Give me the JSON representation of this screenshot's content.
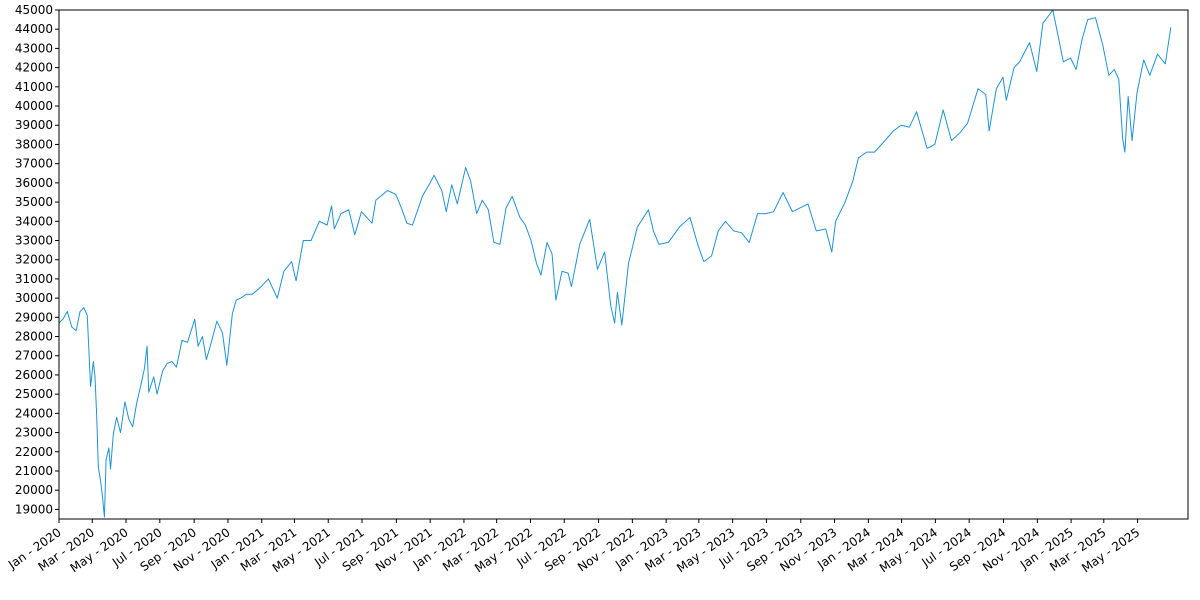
{
  "chart_data": {
    "type": "line",
    "title": "",
    "xlabel": "",
    "ylabel": "",
    "grid": false,
    "x_range": [
      "2020-01-01",
      "2025-07-31"
    ],
    "ylim": [
      18500,
      45000
    ],
    "yticks": [
      19000,
      20000,
      21000,
      22000,
      23000,
      24000,
      25000,
      26000,
      27000,
      28000,
      29000,
      30000,
      31000,
      32000,
      33000,
      34000,
      35000,
      36000,
      37000,
      38000,
      39000,
      40000,
      41000,
      42000,
      43000,
      44000,
      45000
    ],
    "xticks": [
      {
        "date": "2020-01-01",
        "label": "Jan - 2020"
      },
      {
        "date": "2020-03-01",
        "label": "Mar - 2020"
      },
      {
        "date": "2020-05-01",
        "label": "May - 2020"
      },
      {
        "date": "2020-07-01",
        "label": "Jul - 2020"
      },
      {
        "date": "2020-09-01",
        "label": "Sep - 2020"
      },
      {
        "date": "2020-11-01",
        "label": "Nov - 2020"
      },
      {
        "date": "2021-01-01",
        "label": "Jan - 2021"
      },
      {
        "date": "2021-03-01",
        "label": "Mar - 2021"
      },
      {
        "date": "2021-05-01",
        "label": "May - 2021"
      },
      {
        "date": "2021-07-01",
        "label": "Jul - 2021"
      },
      {
        "date": "2021-09-01",
        "label": "Sep - 2021"
      },
      {
        "date": "2021-11-01",
        "label": "Nov - 2021"
      },
      {
        "date": "2022-01-01",
        "label": "Jan - 2022"
      },
      {
        "date": "2022-03-01",
        "label": "Mar - 2022"
      },
      {
        "date": "2022-05-01",
        "label": "May - 2022"
      },
      {
        "date": "2022-07-01",
        "label": "Jul - 2022"
      },
      {
        "date": "2022-09-01",
        "label": "Sep - 2022"
      },
      {
        "date": "2022-11-01",
        "label": "Nov - 2022"
      },
      {
        "date": "2023-01-01",
        "label": "Jan - 2023"
      },
      {
        "date": "2023-03-01",
        "label": "Mar - 2023"
      },
      {
        "date": "2023-05-01",
        "label": "May - 2023"
      },
      {
        "date": "2023-07-01",
        "label": "Jul - 2023"
      },
      {
        "date": "2023-09-01",
        "label": "Sep - 2023"
      },
      {
        "date": "2023-11-01",
        "label": "Nov - 2023"
      },
      {
        "date": "2024-01-01",
        "label": "Jan - 2024"
      },
      {
        "date": "2024-03-01",
        "label": "Mar - 2024"
      },
      {
        "date": "2024-05-01",
        "label": "May - 2024"
      },
      {
        "date": "2024-07-01",
        "label": "Jul - 2024"
      },
      {
        "date": "2024-09-01",
        "label": "Sep - 2024"
      },
      {
        "date": "2024-11-01",
        "label": "Nov - 2024"
      },
      {
        "date": "2025-01-01",
        "label": "Jan - 2025"
      },
      {
        "date": "2025-03-01",
        "label": "Mar - 2025"
      },
      {
        "date": "2025-05-01",
        "label": "May - 2025"
      }
    ],
    "series": [
      {
        "color": "#1f93d6",
        "points": [
          [
            "2020-01-01",
            28700
          ],
          [
            "2020-01-08",
            28900
          ],
          [
            "2020-01-16",
            29300
          ],
          [
            "2020-01-24",
            28500
          ],
          [
            "2020-02-01",
            28300
          ],
          [
            "2020-02-08",
            29300
          ],
          [
            "2020-02-15",
            29500
          ],
          [
            "2020-02-21",
            29100
          ],
          [
            "2020-02-27",
            25400
          ],
          [
            "2020-03-03",
            26700
          ],
          [
            "2020-03-06",
            25900
          ],
          [
            "2020-03-09",
            23900
          ],
          [
            "2020-03-12",
            21200
          ],
          [
            "2020-03-16",
            20500
          ],
          [
            "2020-03-19",
            19800
          ],
          [
            "2020-03-23",
            18600
          ],
          [
            "2020-03-26",
            21600
          ],
          [
            "2020-03-31",
            22200
          ],
          [
            "2020-04-03",
            21100
          ],
          [
            "2020-04-08",
            22900
          ],
          [
            "2020-04-14",
            23800
          ],
          [
            "2020-04-21",
            23000
          ],
          [
            "2020-04-29",
            24600
          ],
          [
            "2020-05-06",
            23700
          ],
          [
            "2020-05-13",
            23300
          ],
          [
            "2020-05-20",
            24500
          ],
          [
            "2020-05-28",
            25500
          ],
          [
            "2020-06-03",
            26300
          ],
          [
            "2020-06-08",
            27500
          ],
          [
            "2020-06-11",
            25100
          ],
          [
            "2020-06-20",
            25900
          ],
          [
            "2020-06-26",
            25000
          ],
          [
            "2020-07-06",
            26200
          ],
          [
            "2020-07-14",
            26600
          ],
          [
            "2020-07-23",
            26700
          ],
          [
            "2020-07-31",
            26400
          ],
          [
            "2020-08-10",
            27800
          ],
          [
            "2020-08-20",
            27700
          ],
          [
            "2020-09-02",
            28900
          ],
          [
            "2020-09-08",
            27500
          ],
          [
            "2020-09-16",
            28000
          ],
          [
            "2020-09-23",
            26800
          ],
          [
            "2020-10-02",
            27700
          ],
          [
            "2020-10-12",
            28800
          ],
          [
            "2020-10-22",
            28200
          ],
          [
            "2020-10-30",
            26500
          ],
          [
            "2020-11-09",
            29200
          ],
          [
            "2020-11-16",
            29900
          ],
          [
            "2020-11-24",
            30000
          ],
          [
            "2020-12-04",
            30200
          ],
          [
            "2020-12-15",
            30200
          ],
          [
            "2020-12-31",
            30600
          ],
          [
            "2021-01-13",
            31000
          ],
          [
            "2021-01-29",
            30000
          ],
          [
            "2021-02-10",
            31400
          ],
          [
            "2021-02-24",
            31900
          ],
          [
            "2021-03-04",
            30900
          ],
          [
            "2021-03-17",
            33000
          ],
          [
            "2021-03-31",
            33000
          ],
          [
            "2021-04-15",
            34000
          ],
          [
            "2021-04-29",
            33800
          ],
          [
            "2021-05-07",
            34800
          ],
          [
            "2021-05-12",
            33600
          ],
          [
            "2021-05-24",
            34400
          ],
          [
            "2021-06-07",
            34600
          ],
          [
            "2021-06-18",
            33300
          ],
          [
            "2021-06-30",
            34500
          ],
          [
            "2021-07-19",
            33900
          ],
          [
            "2021-07-26",
            35100
          ],
          [
            "2021-08-16",
            35600
          ],
          [
            "2021-08-31",
            35400
          ],
          [
            "2021-09-10",
            34700
          ],
          [
            "2021-09-20",
            33900
          ],
          [
            "2021-09-30",
            33800
          ],
          [
            "2021-10-18",
            35300
          ],
          [
            "2021-11-01",
            36000
          ],
          [
            "2021-11-08",
            36400
          ],
          [
            "2021-11-22",
            35600
          ],
          [
            "2021-11-30",
            34500
          ],
          [
            "2021-12-10",
            35900
          ],
          [
            "2021-12-20",
            34900
          ],
          [
            "2022-01-04",
            36800
          ],
          [
            "2022-01-13",
            36100
          ],
          [
            "2022-01-24",
            34400
          ],
          [
            "2022-02-03",
            35100
          ],
          [
            "2022-02-14",
            34600
          ],
          [
            "2022-02-24",
            32900
          ],
          [
            "2022-03-07",
            32800
          ],
          [
            "2022-03-18",
            34700
          ],
          [
            "2022-03-29",
            35300
          ],
          [
            "2022-04-12",
            34200
          ],
          [
            "2022-04-22",
            33800
          ],
          [
            "2022-05-02",
            33000
          ],
          [
            "2022-05-12",
            31800
          ],
          [
            "2022-05-20",
            31200
          ],
          [
            "2022-05-31",
            32900
          ],
          [
            "2022-06-09",
            32300
          ],
          [
            "2022-06-16",
            29900
          ],
          [
            "2022-06-27",
            31400
          ],
          [
            "2022-07-08",
            31300
          ],
          [
            "2022-07-14",
            30600
          ],
          [
            "2022-07-29",
            32800
          ],
          [
            "2022-08-16",
            34100
          ],
          [
            "2022-08-30",
            31500
          ],
          [
            "2022-09-12",
            32400
          ],
          [
            "2022-09-23",
            29600
          ],
          [
            "2022-09-30",
            28700
          ],
          [
            "2022-10-05",
            30300
          ],
          [
            "2022-10-13",
            28600
          ],
          [
            "2022-10-25",
            31800
          ],
          [
            "2022-11-10",
            33700
          ],
          [
            "2022-11-30",
            34600
          ],
          [
            "2022-12-09",
            33500
          ],
          [
            "2022-12-19",
            32800
          ],
          [
            "2023-01-05",
            32900
          ],
          [
            "2023-01-25",
            33700
          ],
          [
            "2023-02-13",
            34200
          ],
          [
            "2023-02-28",
            32700
          ],
          [
            "2023-03-10",
            31900
          ],
          [
            "2023-03-24",
            32200
          ],
          [
            "2023-04-05",
            33500
          ],
          [
            "2023-04-18",
            34000
          ],
          [
            "2023-05-03",
            33500
          ],
          [
            "2023-05-17",
            33400
          ],
          [
            "2023-05-31",
            32900
          ],
          [
            "2023-06-15",
            34400
          ],
          [
            "2023-06-30",
            34400
          ],
          [
            "2023-07-14",
            34500
          ],
          [
            "2023-07-31",
            35500
          ],
          [
            "2023-08-17",
            34500
          ],
          [
            "2023-08-31",
            34700
          ],
          [
            "2023-09-14",
            34900
          ],
          [
            "2023-09-29",
            33500
          ],
          [
            "2023-10-16",
            33600
          ],
          [
            "2023-10-27",
            32400
          ],
          [
            "2023-11-03",
            34000
          ],
          [
            "2023-11-20",
            35000
          ],
          [
            "2023-12-04",
            36100
          ],
          [
            "2023-12-14",
            37300
          ],
          [
            "2023-12-29",
            37600
          ],
          [
            "2024-01-12",
            37600
          ],
          [
            "2024-01-31",
            38200
          ],
          [
            "2024-02-15",
            38700
          ],
          [
            "2024-02-29",
            39000
          ],
          [
            "2024-03-15",
            38900
          ],
          [
            "2024-03-28",
            39700
          ],
          [
            "2024-04-16",
            37800
          ],
          [
            "2024-04-30",
            38000
          ],
          [
            "2024-05-15",
            39800
          ],
          [
            "2024-05-30",
            38200
          ],
          [
            "2024-06-14",
            38600
          ],
          [
            "2024-06-28",
            39100
          ],
          [
            "2024-07-17",
            40900
          ],
          [
            "2024-07-31",
            40600
          ],
          [
            "2024-08-06",
            38700
          ],
          [
            "2024-08-19",
            40900
          ],
          [
            "2024-08-31",
            41500
          ],
          [
            "2024-09-06",
            40300
          ],
          [
            "2024-09-20",
            42000
          ],
          [
            "2024-09-30",
            42300
          ],
          [
            "2024-10-18",
            43300
          ],
          [
            "2024-10-31",
            41800
          ],
          [
            "2024-11-11",
            44300
          ],
          [
            "2024-11-29",
            45000
          ],
          [
            "2024-12-18",
            42300
          ],
          [
            "2024-12-31",
            42500
          ],
          [
            "2025-01-10",
            41900
          ],
          [
            "2025-01-21",
            43500
          ],
          [
            "2025-01-31",
            44500
          ],
          [
            "2025-02-14",
            44600
          ],
          [
            "2025-02-27",
            43200
          ],
          [
            "2025-03-10",
            41600
          ],
          [
            "2025-03-20",
            41900
          ],
          [
            "2025-03-28",
            41400
          ],
          [
            "2025-04-04",
            38300
          ],
          [
            "2025-04-08",
            37600
          ],
          [
            "2025-04-14",
            40500
          ],
          [
            "2025-04-21",
            38200
          ],
          [
            "2025-04-30",
            40700
          ],
          [
            "2025-05-12",
            42400
          ],
          [
            "2025-05-23",
            41600
          ],
          [
            "2025-06-06",
            42700
          ],
          [
            "2025-06-20",
            42200
          ],
          [
            "2025-06-30",
            44100
          ]
        ]
      }
    ]
  }
}
